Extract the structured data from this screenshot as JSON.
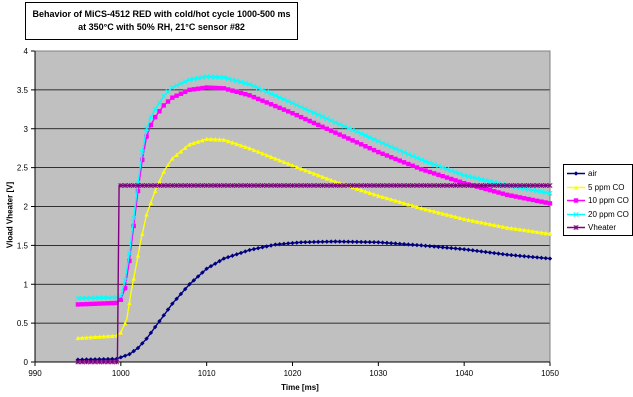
{
  "chart_data": {
    "type": "line",
    "title_lines": [
      "Behavior of MiCS-4512 RED with cold/hot cycle 1000-500 ms",
      "at 350°C with 50% RH, 21°C sensor #82"
    ],
    "xlabel": "Time [ms]",
    "ylabel": "Vload Vheater [V]",
    "xlim": [
      990,
      1050
    ],
    "ylim": [
      0,
      4
    ],
    "x_ticks": [
      "990",
      "1000",
      "1010",
      "1020",
      "1030",
      "1040",
      "1050"
    ],
    "y_ticks": [
      "0",
      "0.5",
      "1",
      "1.5",
      "2",
      "2.5",
      "3",
      "3.5",
      "4"
    ],
    "grid": "horizontal",
    "plot_background": "#c0c0c0",
    "legend_position": "right",
    "series": [
      {
        "name": "air",
        "color": "#000080",
        "marker": "diamond",
        "points": [
          [
            995,
            0.03
          ],
          [
            999.5,
            0.04
          ],
          [
            1000,
            0.06
          ],
          [
            1001,
            0.1
          ],
          [
            1002,
            0.18
          ],
          [
            1003,
            0.3
          ],
          [
            1004,
            0.45
          ],
          [
            1005,
            0.6
          ],
          [
            1006,
            0.75
          ],
          [
            1008,
            1.0
          ],
          [
            1010,
            1.2
          ],
          [
            1012,
            1.33
          ],
          [
            1015,
            1.44
          ],
          [
            1018,
            1.51
          ],
          [
            1021,
            1.54
          ],
          [
            1025,
            1.55
          ],
          [
            1030,
            1.54
          ],
          [
            1035,
            1.5
          ],
          [
            1040,
            1.45
          ],
          [
            1045,
            1.38
          ],
          [
            1050,
            1.33
          ]
        ]
      },
      {
        "name": "5 ppm CO",
        "color": "#ffff00",
        "marker": "triangle",
        "points": [
          [
            995,
            0.31
          ],
          [
            999.5,
            0.34
          ],
          [
            1000,
            0.38
          ],
          [
            1000.7,
            0.55
          ],
          [
            1001.2,
            0.9
          ],
          [
            1001.8,
            1.25
          ],
          [
            1002.3,
            1.55
          ],
          [
            1003,
            1.9
          ],
          [
            1004,
            2.2
          ],
          [
            1005,
            2.45
          ],
          [
            1006,
            2.62
          ],
          [
            1008,
            2.8
          ],
          [
            1010,
            2.87
          ],
          [
            1012,
            2.86
          ],
          [
            1015,
            2.75
          ],
          [
            1020,
            2.53
          ],
          [
            1025,
            2.32
          ],
          [
            1030,
            2.14
          ],
          [
            1035,
            1.98
          ],
          [
            1040,
            1.84
          ],
          [
            1045,
            1.73
          ],
          [
            1050,
            1.65
          ]
        ]
      },
      {
        "name": "10 ppm CO",
        "color": "#ff00ff",
        "marker": "square",
        "points": [
          [
            995,
            0.74
          ],
          [
            999.5,
            0.76
          ],
          [
            1000,
            0.8
          ],
          [
            1000.5,
            0.95
          ],
          [
            1001,
            1.3
          ],
          [
            1001.5,
            1.75
          ],
          [
            1002,
            2.2
          ],
          [
            1002.5,
            2.6
          ],
          [
            1003,
            2.9
          ],
          [
            1003.5,
            3.05
          ],
          [
            1004,
            3.15
          ],
          [
            1005,
            3.3
          ],
          [
            1006,
            3.4
          ],
          [
            1008,
            3.5
          ],
          [
            1010,
            3.53
          ],
          [
            1012,
            3.52
          ],
          [
            1015,
            3.43
          ],
          [
            1020,
            3.2
          ],
          [
            1025,
            2.95
          ],
          [
            1030,
            2.7
          ],
          [
            1035,
            2.48
          ],
          [
            1040,
            2.3
          ],
          [
            1045,
            2.15
          ],
          [
            1050,
            2.04
          ]
        ]
      },
      {
        "name": "20 ppm CO",
        "color": "#00ffff",
        "marker": "x",
        "points": [
          [
            995,
            0.82
          ],
          [
            999.5,
            0.83
          ],
          [
            1000,
            0.85
          ],
          [
            1000.5,
            1.05
          ],
          [
            1001,
            1.4
          ],
          [
            1001.5,
            1.85
          ],
          [
            1002,
            2.3
          ],
          [
            1002.5,
            2.7
          ],
          [
            1003,
            3.0
          ],
          [
            1003.5,
            3.15
          ],
          [
            1004,
            3.25
          ],
          [
            1005,
            3.42
          ],
          [
            1006,
            3.53
          ],
          [
            1008,
            3.63
          ],
          [
            1010,
            3.67
          ],
          [
            1012,
            3.66
          ],
          [
            1015,
            3.57
          ],
          [
            1020,
            3.33
          ],
          [
            1025,
            3.08
          ],
          [
            1030,
            2.84
          ],
          [
            1035,
            2.6
          ],
          [
            1040,
            2.4
          ],
          [
            1045,
            2.27
          ],
          [
            1050,
            2.17
          ]
        ]
      },
      {
        "name": "Vheater",
        "color": "#800080",
        "marker": "star",
        "points": [
          [
            995,
            0.0
          ],
          [
            999.6,
            0.0
          ],
          [
            999.8,
            2.27
          ],
          [
            1050,
            2.27
          ]
        ]
      }
    ]
  }
}
